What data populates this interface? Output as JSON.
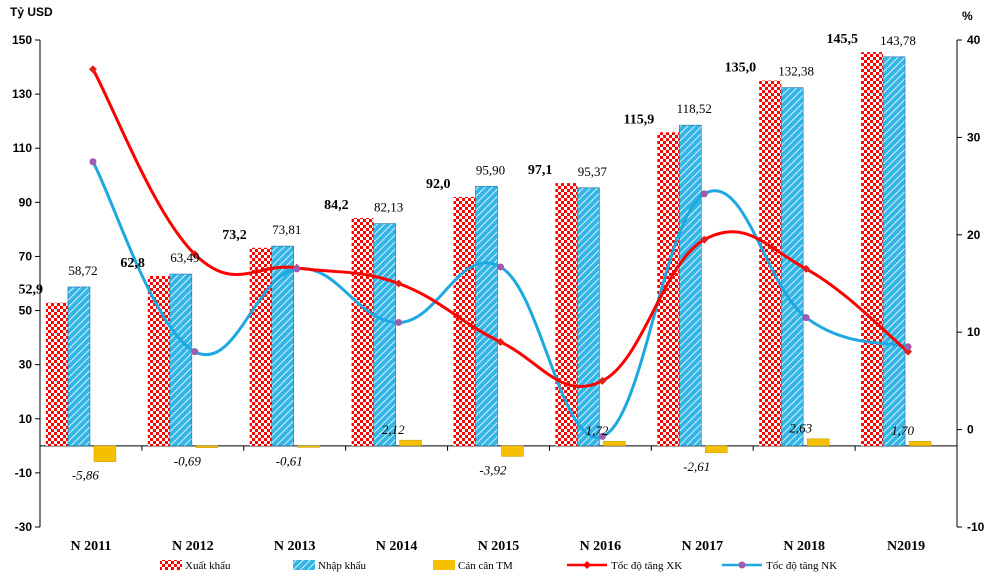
{
  "chart_data": {
    "type": "bar",
    "categories": [
      "N 2011",
      "N 2012",
      "N 2013",
      "N 2014",
      "N 2015",
      "N 2016",
      "N 2017",
      "N 2018",
      "N2019"
    ],
    "left_axis": {
      "unit": "Tỷ USD",
      "ylim": [
        -30,
        150
      ],
      "ticks": [
        150,
        130,
        110,
        90,
        70,
        50,
        30,
        10,
        -10,
        -30
      ]
    },
    "right_axis": {
      "unit": "%",
      "ylim": [
        -10,
        40
      ],
      "ticks": [
        40,
        30,
        20,
        10,
        0,
        -10
      ]
    },
    "series": [
      {
        "name": "Xuất khẩu",
        "kind": "bar",
        "axis": "left",
        "pattern": "checker",
        "color": "#ff0000",
        "values": [
          52.9,
          62.8,
          73.2,
          84.2,
          92.0,
          97.1,
          115.9,
          135.0,
          145.5
        ],
        "labels": [
          "52,9",
          "62,8",
          "73,2",
          "84,2",
          "92,0",
          "97,1",
          "115,9",
          "135,0",
          "145,5"
        ]
      },
      {
        "name": "Nhập khẩu",
        "kind": "bar",
        "axis": "left",
        "pattern": "diagonal",
        "color": "#33b5e5",
        "values": [
          58.72,
          63.49,
          73.81,
          82.13,
          95.9,
          95.37,
          118.52,
          132.38,
          143.78
        ],
        "labels": [
          "58,72",
          "63,49",
          "73,81",
          "82,13",
          "95,90",
          "95,37",
          "118,52",
          "132,38",
          "143,78"
        ]
      },
      {
        "name": "Cán cân TM",
        "kind": "bar",
        "axis": "left",
        "color": "#f5c000",
        "values": [
          -5.86,
          -0.69,
          -0.61,
          2.12,
          -3.92,
          1.72,
          -2.61,
          2.63,
          1.7
        ],
        "labels": [
          "-5,86",
          "-0,69",
          "-0,61",
          "2,12",
          "-3,92",
          "1,72",
          "-2,61",
          "2,63",
          "1,70"
        ]
      },
      {
        "name": "Tốc độ tăng XK",
        "kind": "line",
        "axis": "right",
        "color": "#ff0000",
        "values": [
          37.0,
          18.0,
          16.6,
          15.0,
          9.0,
          5.0,
          19.5,
          16.5,
          8.0
        ]
      },
      {
        "name": "Tốc độ tăng NK",
        "kind": "line",
        "axis": "right",
        "color": "#1fa8e0",
        "marker_color": "#a05ab0",
        "values": [
          27.5,
          8.0,
          16.5,
          11.0,
          16.7,
          -0.7,
          24.2,
          11.5,
          8.5
        ]
      }
    ],
    "grid": false,
    "legend_position": "bottom"
  }
}
